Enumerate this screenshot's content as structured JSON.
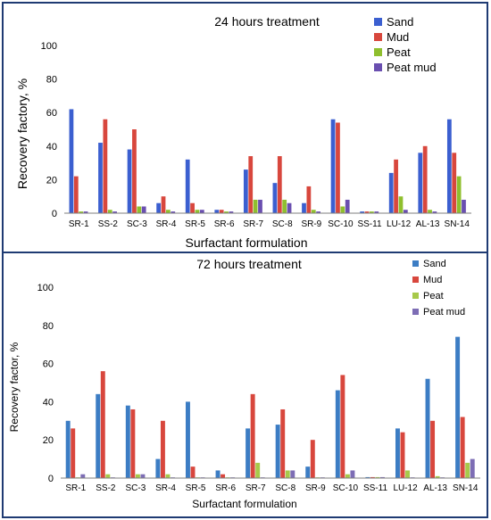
{
  "chart_data": [
    {
      "type": "bar",
      "title": "24 hours treatment",
      "xlabel": "Surfactant formulation",
      "ylabel": "Recovery factory, %",
      "ylim": [
        0,
        100
      ],
      "yticks": [
        "0",
        "20",
        "40",
        "60",
        "80",
        "100"
      ],
      "legend_position": "top-right",
      "categories": [
        "SR-1",
        "SS-2",
        "SC-3",
        "SR-4",
        "SR-5",
        "SR-6",
        "SR-7",
        "SC-8",
        "SR-9",
        "SC-10",
        "SS-11",
        "LU-12",
        "AL-13",
        "SN-14"
      ],
      "series": [
        {
          "name": "Sand",
          "color": "#3b5fd0",
          "values": [
            62,
            42,
            38,
            6,
            32,
            2,
            26,
            18,
            6,
            56,
            1,
            24,
            36,
            56
          ]
        },
        {
          "name": "Mud",
          "color": "#d8473d",
          "values": [
            22,
            56,
            50,
            10,
            6,
            2,
            34,
            34,
            16,
            54,
            1,
            32,
            40,
            36
          ]
        },
        {
          "name": "Peat",
          "color": "#8fbf2e",
          "values": [
            1,
            2,
            4,
            2,
            2,
            1,
            8,
            8,
            2,
            4,
            1,
            10,
            2,
            22
          ]
        },
        {
          "name": "Peat mud",
          "color": "#6a4fb0",
          "values": [
            1,
            1,
            4,
            1,
            2,
            1,
            8,
            6,
            1,
            8,
            1,
            2,
            1,
            8
          ]
        }
      ]
    },
    {
      "type": "bar",
      "title": "72 hours treatment",
      "xlabel": "Surfactant formulation",
      "ylabel": "Recovery factor, %",
      "ylim": [
        0,
        100
      ],
      "yticks": [
        "0",
        "20",
        "40",
        "60",
        "80",
        "100"
      ],
      "legend_position": "top-right",
      "categories": [
        "SR-1",
        "SS-2",
        "SC-3",
        "SR-4",
        "SR-5",
        "SR-6",
        "SR-7",
        "SC-8",
        "SR-9",
        "SC-10",
        "SS-11",
        "LU-12",
        "AL-13",
        "SN-14"
      ],
      "series": [
        {
          "name": "Sand",
          "color": "#3c7dc4",
          "values": [
            30,
            44,
            38,
            10,
            40,
            4,
            26,
            28,
            6,
            46,
            0.5,
            26,
            52,
            74
          ]
        },
        {
          "name": "Mud",
          "color": "#d8473d",
          "values": [
            26,
            56,
            36,
            30,
            6,
            2,
            44,
            36,
            20,
            54,
            0.5,
            24,
            30,
            32
          ]
        },
        {
          "name": "Peat",
          "color": "#a7c94a",
          "values": [
            0,
            2,
            2,
            2,
            0,
            0,
            8,
            4,
            0,
            2,
            0.5,
            4,
            1,
            8
          ]
        },
        {
          "name": "Peat mud",
          "color": "#7d6db5",
          "values": [
            2,
            0,
            2,
            0,
            0,
            0,
            0,
            4,
            0,
            4,
            0.5,
            0,
            0,
            10
          ]
        }
      ]
    }
  ]
}
